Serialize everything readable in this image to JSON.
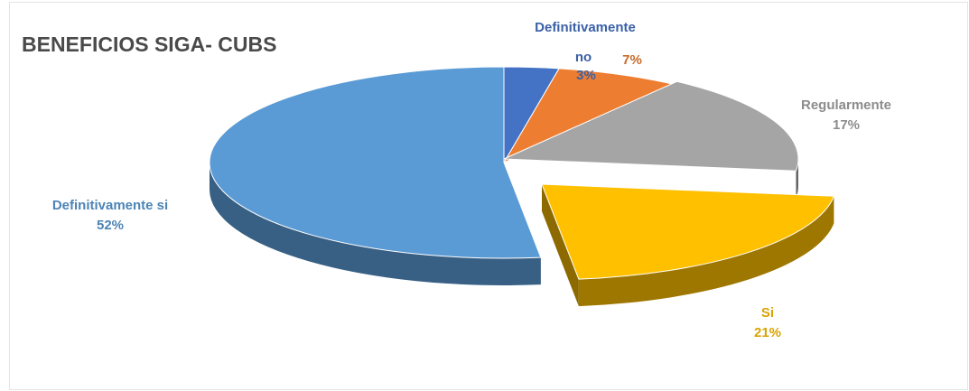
{
  "chart_data": {
    "type": "pie",
    "title": "BENEFICIOS SIGA- CUBS",
    "style": "3d-exploded",
    "slices": [
      {
        "label": "Definitivamente no",
        "value": 3,
        "percent_label": "3%",
        "color": "#4472C4"
      },
      {
        "label": "",
        "value": 7,
        "percent_label": "7%",
        "color": "#ED7D31"
      },
      {
        "label": "Regularmente",
        "value": 17,
        "percent_label": "17%",
        "color": "#A5A5A5"
      },
      {
        "label": "Si",
        "value": 21,
        "percent_label": "21%",
        "color": "#FFC000"
      },
      {
        "label": "Definitivamente si",
        "value": 52,
        "percent_label": "52%",
        "color": "#5B9BD5"
      }
    ]
  }
}
